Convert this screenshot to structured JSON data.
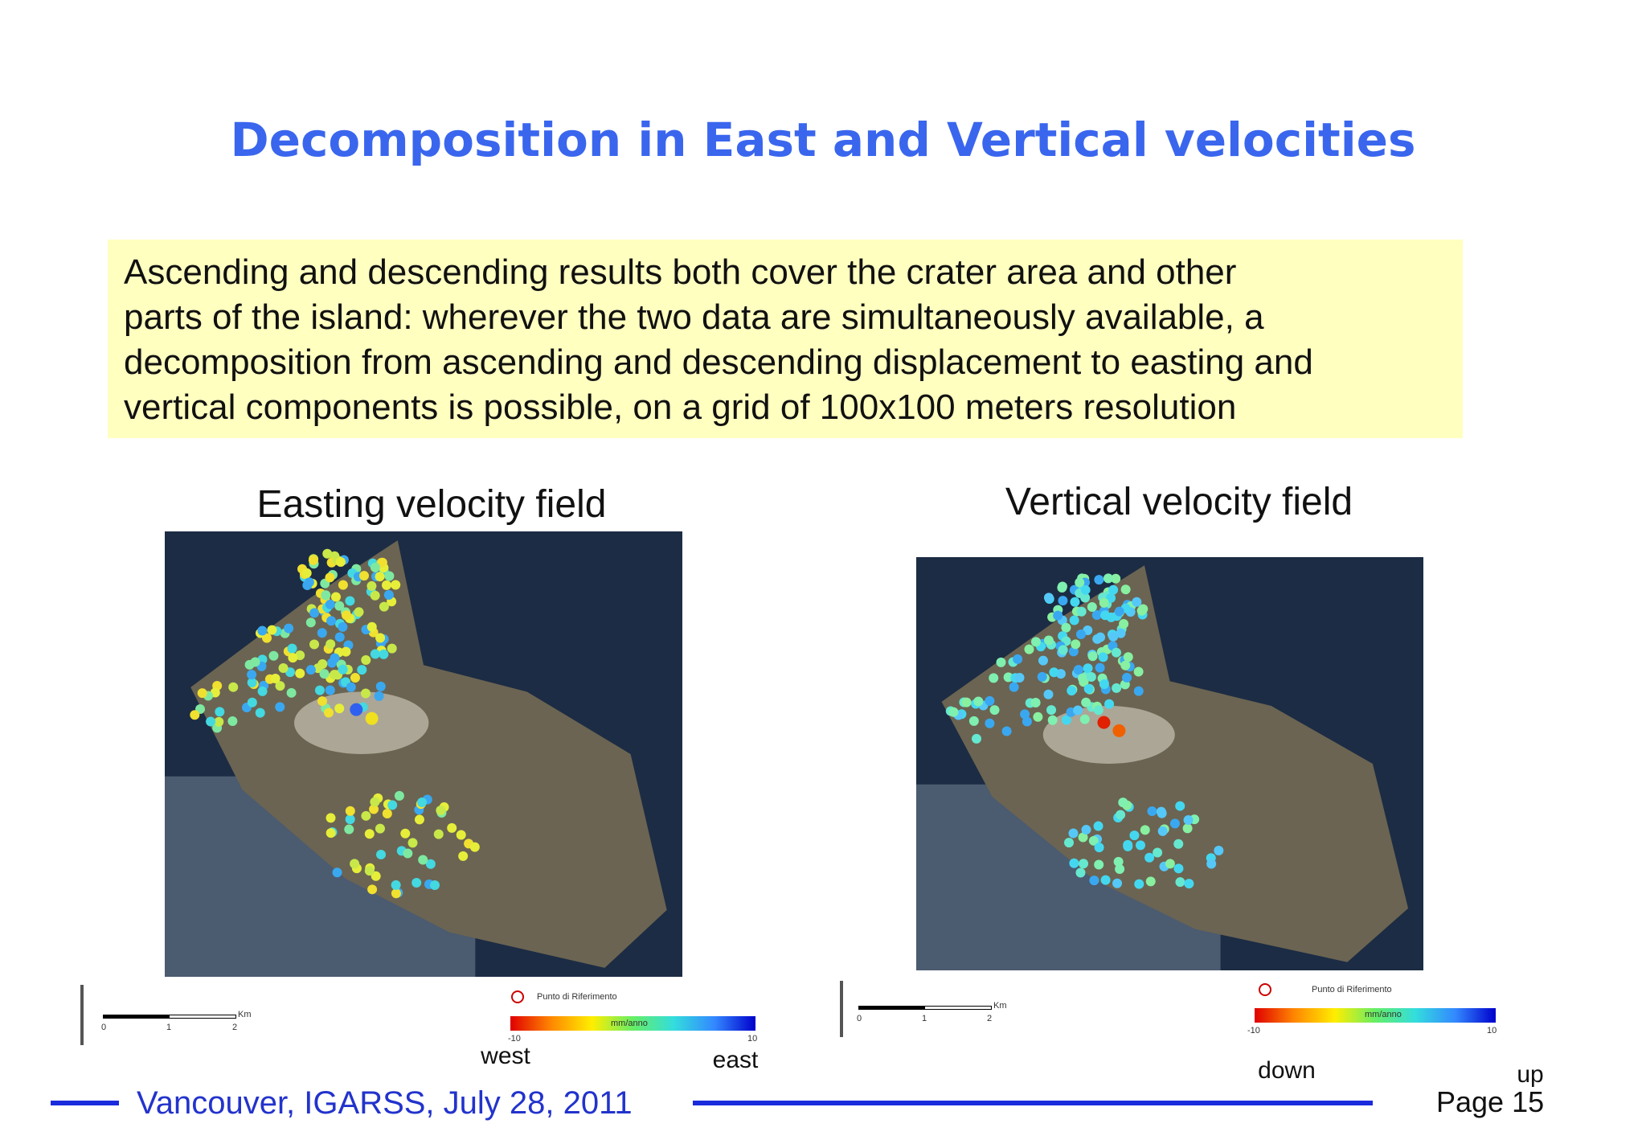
{
  "header": {
    "title": "Decomposition in East and Vertical velocities"
  },
  "text": {
    "lines": [
      "Ascending and descending results both cover the crater area and other",
      "parts of the island: wherever the two data are simultaneously available, a",
      "decomposition from ascending and descending displacement to easting and",
      "vertical components is possible, on a grid of 100x100 meters resolution"
    ]
  },
  "panels": [
    {
      "caption": "Easting velocity field",
      "reference": "Punto di Riferimento",
      "unit": "mm/anno",
      "scale_unit": "Km",
      "scale_labels": [
        "0",
        "1",
        "2"
      ],
      "color_min": "-10",
      "color_max": "10",
      "low_label": "west",
      "high_label": "east"
    },
    {
      "caption": "Vertical velocity field",
      "reference": "Punto di Riferimento",
      "unit": "mm/anno",
      "scale_unit": "Km",
      "scale_labels": [
        "0",
        "1",
        "2"
      ],
      "color_min": "-10",
      "color_max": "10",
      "low_label": "down",
      "high_label": "up"
    }
  ],
  "footer": {
    "text": "Vancouver, IGARSS, July 28, 2011",
    "page": "Page 15"
  }
}
